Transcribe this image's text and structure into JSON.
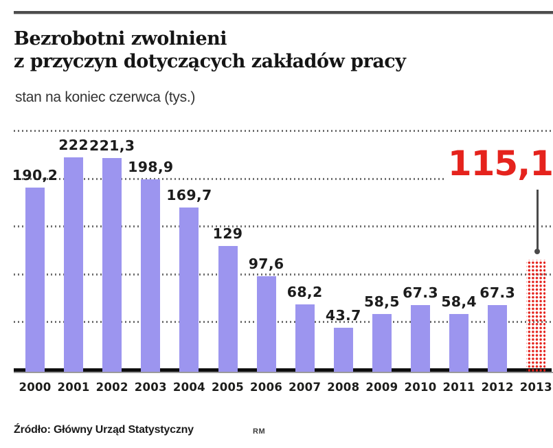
{
  "header": {
    "title_line1": "Bezrobotni zwolnieni",
    "title_line2": "z przyczyn dotyczących zakładów pracy",
    "subtitle": "stan na koniec czerwca (tys.)"
  },
  "footer": {
    "source": "Źródło: Główny Urząd Statystyczny",
    "credit": "RM"
  },
  "chart_data": {
    "type": "bar",
    "title": "Bezrobotni zwolnieni z przyczyn dotyczących zakładów pracy",
    "subtitle": "stan na koniec czerwca (tys.)",
    "unit": "tys.",
    "categories": [
      "2000",
      "2001",
      "2002",
      "2003",
      "2004",
      "2005",
      "2006",
      "2007",
      "2008",
      "2009",
      "2010",
      "2011",
      "2012",
      "2013"
    ],
    "values": [
      190.2,
      222,
      221.3,
      198.9,
      169.7,
      129,
      97.6,
      68.2,
      43.7,
      58.5,
      67.3,
      58.4,
      67.3,
      115.1
    ],
    "value_labels": [
      "190,2",
      "222",
      "221,3",
      "198,9",
      "169,7",
      "129",
      "97,6",
      "68,2",
      "43.7",
      "58,5",
      "67.3",
      "58,4",
      "67.3",
      "115,1"
    ],
    "highlight": {
      "category": "2013",
      "value": 115.1,
      "label": "115,1",
      "style": "red-dotted-bar-with-callout"
    },
    "ylim": [
      0,
      250
    ],
    "grid_step": 50,
    "grid": "dotted-horizontal",
    "axis_tick_labels_visible": false,
    "legend": "none",
    "colors": {
      "bar": "#9c95ef",
      "highlight": "#e5231d",
      "value_label": "#1c1c1c",
      "grid_dots": "#6f6f6f",
      "axis": "#0e0e0e"
    }
  }
}
